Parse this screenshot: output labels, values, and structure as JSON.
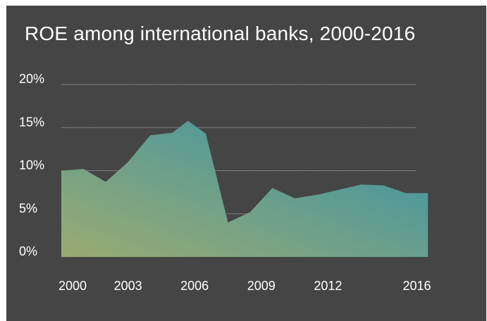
{
  "chart_data": {
    "type": "area",
    "title": "ROE among international banks, 2000-2016",
    "xlabel": "",
    "ylabel": "",
    "x": [
      2000,
      2001,
      2002,
      2003,
      2004,
      2005,
      2005.7,
      2006.5,
      2007.5,
      2008.5,
      2009.5,
      2010.5,
      2011.5,
      2012.5,
      2013.5,
      2014.5,
      2015.5,
      2016.5
    ],
    "series": [
      {
        "values": [
          10.0,
          10.2,
          8.7,
          11.0,
          14.1,
          14.4,
          15.8,
          14.3,
          4.0,
          5.2,
          8.0,
          6.8,
          7.2,
          7.8,
          8.4,
          8.3,
          7.4,
          7.4
        ]
      }
    ],
    "ylim": [
      0,
      20
    ],
    "xlim": [
      2000,
      2017
    ],
    "y_ticks": [
      0,
      5,
      10,
      15,
      20
    ],
    "y_tick_labels": [
      "0%",
      "5%",
      "10%",
      "15%",
      "20%"
    ],
    "x_ticks": [
      2000,
      2003,
      2006,
      2009,
      2012,
      2016
    ],
    "x_tick_labels": [
      "2000",
      "2003",
      "2006",
      "2009",
      "2012",
      "2016"
    ],
    "grid": true,
    "legend": "none"
  },
  "colors": {
    "background": "#454545",
    "gradient_start": "#9bab72",
    "gradient_end": "#3592a8",
    "gridline": "#b8b8b8",
    "text": "#ffffff"
  }
}
